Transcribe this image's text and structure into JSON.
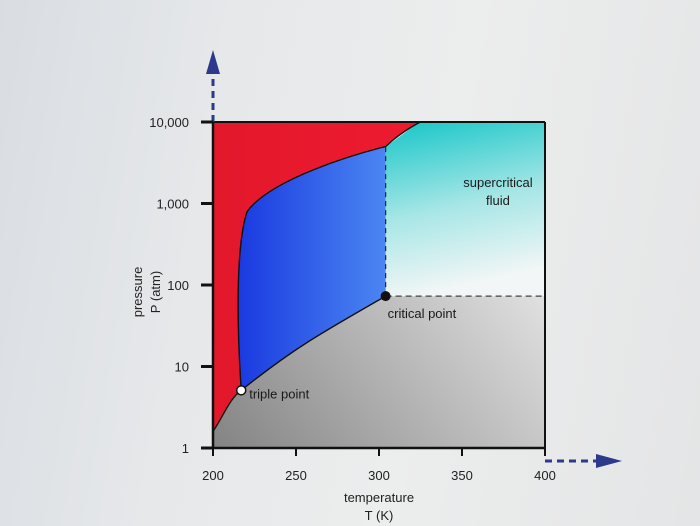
{
  "chart_data": {
    "type": "area",
    "title": "",
    "xlabel": [
      "temperature",
      "T (K)"
    ],
    "ylabel": [
      "pressure",
      "P (atm)"
    ],
    "xlim": [
      200,
      400
    ],
    "ylim": [
      1,
      10000
    ],
    "yscale": "log",
    "x_ticks": [
      {
        "value": 200,
        "label": "200"
      },
      {
        "value": 250,
        "label": "250"
      },
      {
        "value": 300,
        "label": "300"
      },
      {
        "value": 350,
        "label": "350"
      },
      {
        "value": 400,
        "label": "400"
      }
    ],
    "y_ticks": [
      {
        "value": 1,
        "label": "1"
      },
      {
        "value": 10,
        "label": "10"
      },
      {
        "value": 100,
        "label": "100"
      },
      {
        "value": 1000,
        "label": "1,000"
      },
      {
        "value": 10000,
        "label": "10,000"
      }
    ],
    "points": [
      {
        "name": "triple point",
        "label": "triple point",
        "x": 217,
        "y": 5.1
      },
      {
        "name": "critical point",
        "label": "critical point",
        "x": 304,
        "y": 73
      }
    ],
    "region_labels": [
      {
        "name": "supercritical",
        "lines": [
          "supercritical",
          "fluid"
        ],
        "x": 362,
        "y": 1500
      }
    ],
    "colors": {
      "solid": "#e8192c",
      "liquid": "#1d3fe0",
      "liquid_light": "#4f84f0",
      "gas_dark": "#8e8e8e",
      "gas_light": "#e4e4e4",
      "supercritical_top": "#1cc9c9",
      "supercritical_bottom": "#eef6f6",
      "axis": "#111111",
      "arrow": "#2b3a8a"
    }
  }
}
